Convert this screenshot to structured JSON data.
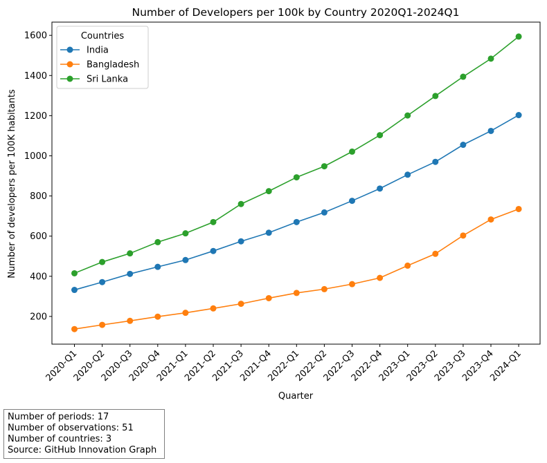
{
  "chart_data": {
    "type": "line",
    "title": "Number of Developers per 100k by Country 2020Q1-2024Q1",
    "xlabel": "Quarter",
    "ylabel": "Number of developers per 100K habitants",
    "categories": [
      "2020-Q1",
      "2020-Q2",
      "2020-Q3",
      "2020-Q4",
      "2021-Q1",
      "2021-Q2",
      "2021-Q3",
      "2021-Q4",
      "2022-Q1",
      "2022-Q2",
      "2022-Q3",
      "2022-Q4",
      "2023-Q1",
      "2023-Q2",
      "2023-Q3",
      "2023-Q4",
      "2024-Q1"
    ],
    "ylim": [
      62,
      1666
    ],
    "yticks": [
      200,
      400,
      600,
      800,
      1000,
      1200,
      1400,
      1600
    ],
    "grid": false,
    "legend": {
      "title": "Countries",
      "placement": "top-left"
    },
    "series": [
      {
        "name": "India",
        "color": "#1f77b4",
        "values": [
          332,
          371,
          412,
          447,
          481,
          526,
          574,
          617,
          670,
          718,
          776,
          837,
          906,
          970,
          1055,
          1124,
          1203
        ]
      },
      {
        "name": "Bangladesh",
        "color": "#ff7f0e",
        "values": [
          137,
          158,
          178,
          199,
          218,
          240,
          263,
          291,
          317,
          336,
          361,
          392,
          453,
          512,
          603,
          683,
          735
        ]
      },
      {
        "name": "Sri Lanka",
        "color": "#2ca02c",
        "values": [
          415,
          471,
          514,
          570,
          614,
          670,
          760,
          824,
          893,
          948,
          1021,
          1103,
          1201,
          1298,
          1394,
          1484,
          1594
        ]
      }
    ]
  },
  "notes": [
    "Number of periods: 17",
    "Number of observations: 51",
    "Number of countries: 3",
    "Source: GitHub Innovation Graph"
  ]
}
